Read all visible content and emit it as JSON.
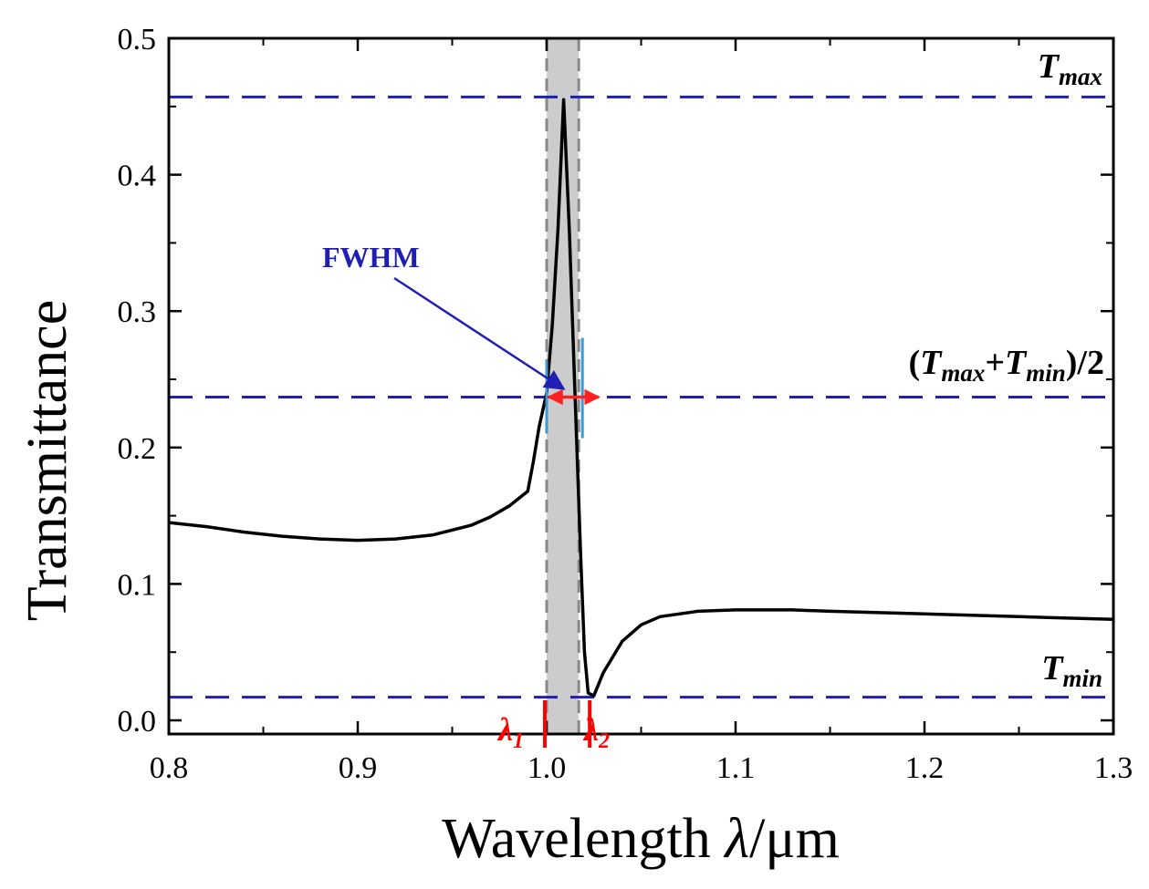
{
  "chart_data": {
    "type": "line",
    "xlabel_main": "Wavelength ",
    "xlabel_symbol": "λ",
    "xlabel_unit": "/μm",
    "ylabel": "Transmittance",
    "xlim": [
      0.8,
      1.3
    ],
    "ylim": [
      -0.01,
      0.5
    ],
    "xticks": [
      0.8,
      0.9,
      1.0,
      1.1,
      1.2,
      1.3
    ],
    "xtick_labels": [
      "0.8",
      "0.9",
      "1.0",
      "1.1",
      "1.2",
      "1.3"
    ],
    "yticks": [
      0.0,
      0.1,
      0.2,
      0.3,
      0.4,
      0.5
    ],
    "ytick_labels": [
      "0.0",
      "0.1",
      "0.2",
      "0.3",
      "0.4",
      "0.5"
    ],
    "series": [
      {
        "name": "Transmittance",
        "color": "#000000",
        "x": [
          0.8,
          0.82,
          0.84,
          0.86,
          0.88,
          0.9,
          0.92,
          0.94,
          0.96,
          0.97,
          0.98,
          0.99,
          0.993,
          0.996,
          1.0,
          1.003,
          1.006,
          1.009,
          1.012,
          1.015,
          1.018,
          1.02,
          1.022,
          1.025,
          1.03,
          1.04,
          1.05,
          1.06,
          1.08,
          1.1,
          1.13,
          1.15,
          1.2,
          1.25,
          1.3
        ],
        "y": [
          0.145,
          0.142,
          0.138,
          0.135,
          0.133,
          0.132,
          0.133,
          0.136,
          0.143,
          0.149,
          0.157,
          0.168,
          0.19,
          0.215,
          0.24,
          0.29,
          0.36,
          0.455,
          0.36,
          0.24,
          0.12,
          0.05,
          0.02,
          0.018,
          0.035,
          0.058,
          0.07,
          0.076,
          0.08,
          0.081,
          0.081,
          0.08,
          0.078,
          0.076,
          0.074
        ]
      }
    ],
    "reference_lines": [
      {
        "name": "Tmax",
        "y": 0.457,
        "label": "T",
        "label_sub": "max"
      },
      {
        "name": "half",
        "y": 0.237,
        "label_parts": [
          "(",
          "T",
          "max",
          "+",
          "T",
          "min",
          ")/2"
        ]
      },
      {
        "name": "Tmin",
        "y": 0.017,
        "label": "T",
        "label_sub": "min"
      }
    ],
    "ref_line_color": "#1f1fb4",
    "shaded_band": {
      "x_start": 1.0,
      "x_end": 1.017,
      "color": "#cccccc"
    },
    "annotations": {
      "fwhm": {
        "text": "FWHM",
        "color": "#1f1fb4",
        "target_x": 1.009,
        "target_y": 0.243
      },
      "fwhm_arrow_color": "#ff2020",
      "fwhm_marker_color": "#3a9ad9",
      "lambda1": {
        "symbol": "λ",
        "sub": "1",
        "x": 1.0,
        "color": "#ff0000"
      },
      "lambda2": {
        "symbol": "λ",
        "sub": "2",
        "x": 1.017,
        "color": "#ff0000"
      }
    }
  }
}
